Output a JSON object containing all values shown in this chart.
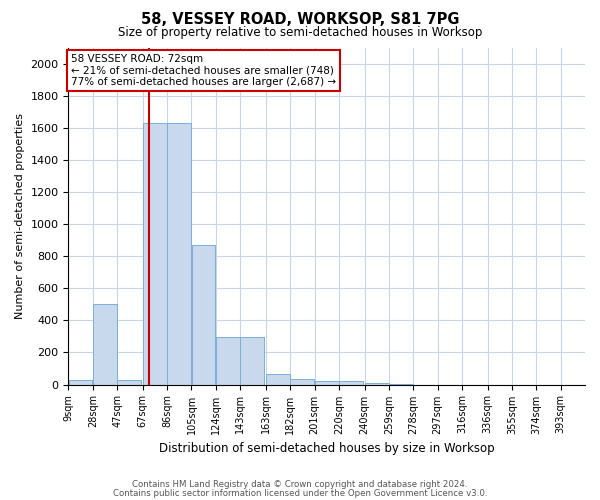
{
  "title": "58, VESSEY ROAD, WORKSOP, S81 7PG",
  "subtitle": "Size of property relative to semi-detached houses in Worksop",
  "xlabel": "Distribution of semi-detached houses by size in Worksop",
  "ylabel": "Number of semi-detached properties",
  "footer_line1": "Contains HM Land Registry data © Crown copyright and database right 2024.",
  "footer_line2": "Contains public sector information licensed under the Open Government Licence v3.0.",
  "annotation_title": "58 VESSEY ROAD: 72sqm",
  "annotation_line1": "← 21% of semi-detached houses are smaller (748)",
  "annotation_line2": "77% of semi-detached houses are larger (2,687) →",
  "property_size": 72,
  "bar_left_edges": [
    9,
    28,
    47,
    67,
    86,
    105,
    124,
    143,
    163,
    182,
    201,
    220,
    240,
    259,
    278,
    297,
    316,
    336,
    355,
    374
  ],
  "bar_widths": [
    19,
    19,
    19,
    19,
    19,
    19,
    19,
    19,
    19,
    19,
    19,
    19,
    19,
    19,
    19,
    19,
    19,
    19,
    19,
    19
  ],
  "bar_heights": [
    30,
    500,
    30,
    1630,
    1630,
    870,
    295,
    295,
    65,
    35,
    25,
    20,
    10,
    5,
    0,
    0,
    0,
    0,
    0,
    0
  ],
  "bar_color": "#c9d9ed",
  "bar_edge_color": "#7bafd4",
  "red_line_color": "#cc0000",
  "annotation_box_color": "#ffffff",
  "annotation_box_edge": "#cc0000",
  "background_color": "#ffffff",
  "grid_color": "#c8d4e8",
  "tick_labels": [
    "9sqm",
    "28sqm",
    "47sqm",
    "67sqm",
    "86sqm",
    "105sqm",
    "124sqm",
    "143sqm",
    "163sqm",
    "182sqm",
    "201sqm",
    "220sqm",
    "240sqm",
    "259sqm",
    "278sqm",
    "297sqm",
    "316sqm",
    "336sqm",
    "355sqm",
    "374sqm",
    "393sqm"
  ],
  "ylim": [
    0,
    2100
  ],
  "yticks": [
    0,
    200,
    400,
    600,
    800,
    1000,
    1200,
    1400,
    1600,
    1800,
    2000
  ],
  "xlim_left": 9,
  "xlim_right": 412
}
